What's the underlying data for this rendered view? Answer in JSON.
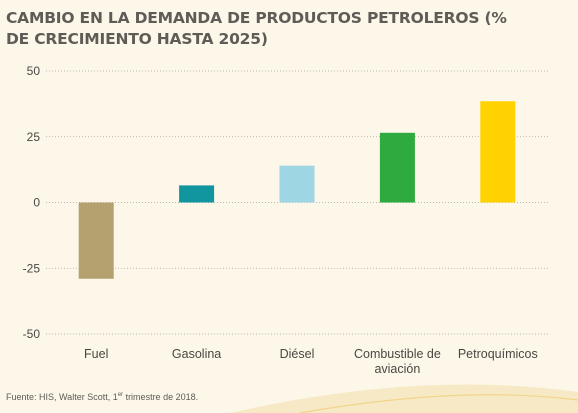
{
  "chart_data": {
    "type": "bar",
    "title": "CAMBIO EN LA DEMANDA DE PRODUCTOS PETROLEROS (% DE CRECIMIENTO HASTA 2025)",
    "categories": [
      "Fuel",
      "Gasolina",
      "Diésel",
      "Combustible de aviación",
      "Petroquímicos"
    ],
    "category_lines": [
      [
        "Fuel"
      ],
      [
        "Gasolina"
      ],
      [
        "Diésel"
      ],
      [
        "Combustible de",
        "aviación"
      ],
      [
        "Petroquímicos"
      ]
    ],
    "values": [
      -29,
      6.5,
      14,
      26.5,
      38.5
    ],
    "colors": [
      "#b5a06f",
      "#11959f",
      "#9fd6e4",
      "#2eaa3f",
      "#ffd200"
    ],
    "yticks": [
      50,
      25,
      0,
      -25,
      -50
    ],
    "ylim": [
      -50,
      50
    ],
    "grid": true,
    "legend": "none"
  },
  "source": {
    "prefix": "Fuente: HIS, Walter Scott, 1",
    "superscript": "er",
    "suffix": " trimestre de 2018."
  }
}
